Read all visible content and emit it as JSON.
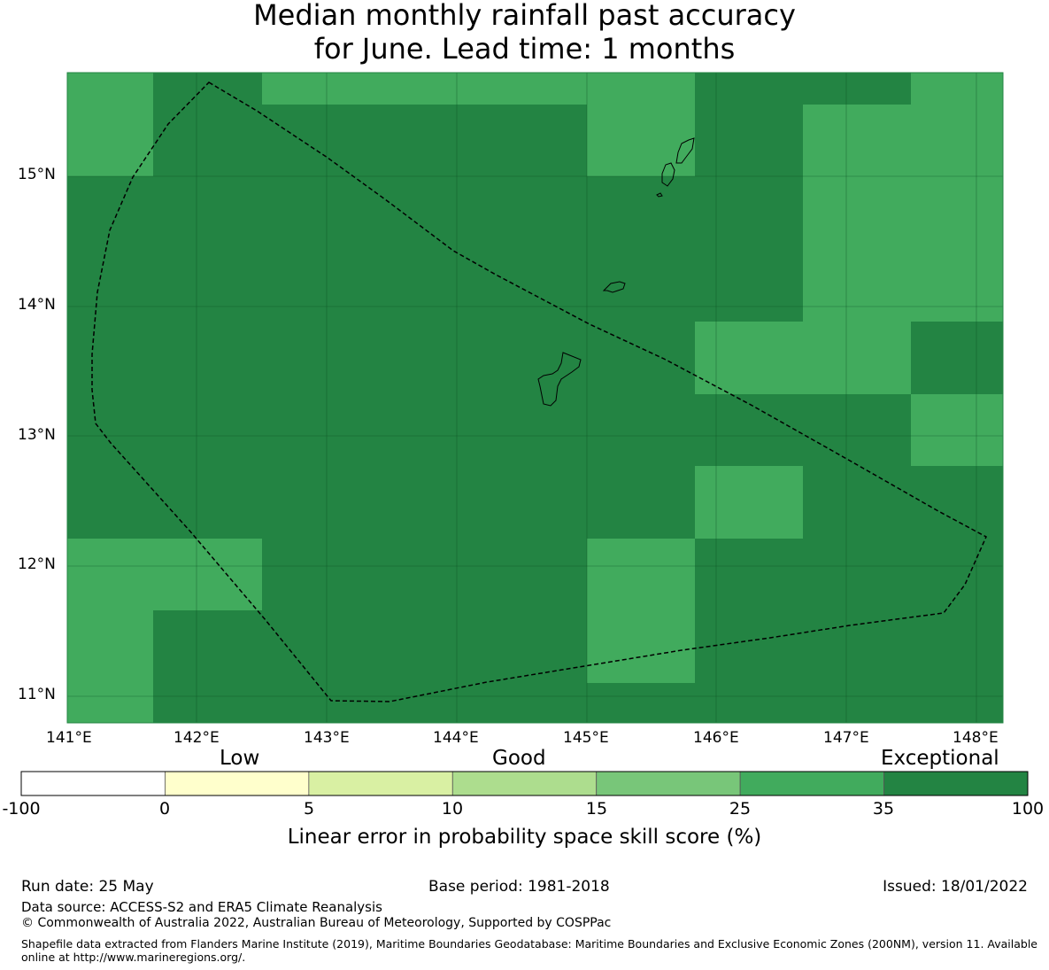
{
  "title": {
    "line1": "Median monthly rainfall past accuracy",
    "line2": "for June. Lead time: 1 months"
  },
  "map": {
    "lon_labels": [
      "141°E",
      "142°E",
      "143°E",
      "144°E",
      "145°E",
      "146°E",
      "147°E",
      "148°E"
    ],
    "lat_labels": [
      "15°N",
      "14°N",
      "13°N",
      "12°N",
      "11°N"
    ],
    "colors": {
      "band_25_35": "#41ab5d",
      "band_35_100": "#238443"
    }
  },
  "colorbar": {
    "category_labels": {
      "low": "Low",
      "good": "Good",
      "exceptional": "Exceptional"
    },
    "ticks": [
      "-100",
      "0",
      "5",
      "10",
      "15",
      "25",
      "35",
      "100"
    ],
    "colors": [
      "#ffffff",
      "#ffffcc",
      "#d9f0a3",
      "#addd8e",
      "#78c679",
      "#41ab5d",
      "#238443"
    ],
    "title": "Linear error in probability space skill score (%)"
  },
  "footer": {
    "run_date": "Run date: 25 May",
    "base_period": "Base period: 1981-2018",
    "issued": "Issued: 18/01/2022",
    "data_source": "Data source: ACCESS-S2 and ERA5 Climate Reanalysis",
    "copyright": "© Commonwealth of Australia 2022, Australian Bureau of Meteorology, Supported by COSPPac",
    "shapefile": "Shapefile data extracted from Flanders Marine Institute (2019), Maritime Boundaries Geodatabase: Maritime Boundaries and Exclusive Economic Zones (200NM), version 11. Available online at http://www.marineregions.org/."
  }
}
